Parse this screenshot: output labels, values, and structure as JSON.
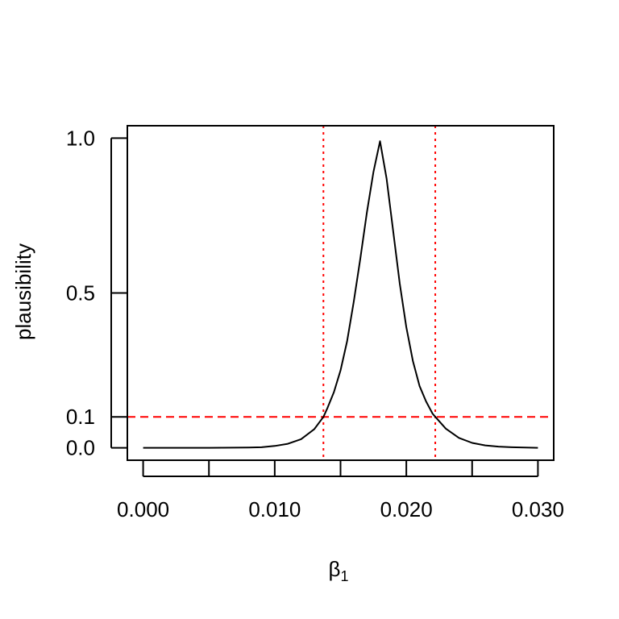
{
  "chart_data": {
    "type": "line",
    "xlabel": "β",
    "xlabel_subscript": "1",
    "ylabel": "plausibility",
    "xlim": [
      -0.0012,
      0.0312
    ],
    "ylim": [
      -0.04,
      1.04
    ],
    "x_ticks": [
      0.0,
      0.005,
      0.01,
      0.015,
      0.02,
      0.025,
      0.03
    ],
    "x_tick_labels": [
      {
        "value": 0.0,
        "label": "0.000"
      },
      {
        "value": 0.01,
        "label": "0.010"
      },
      {
        "value": 0.02,
        "label": "0.020"
      },
      {
        "value": 0.03,
        "label": "0.030"
      }
    ],
    "y_ticks": [
      {
        "value": 0.0,
        "label": "0.0"
      },
      {
        "value": 0.1,
        "label": "0.1"
      },
      {
        "value": 0.5,
        "label": "0.5"
      },
      {
        "value": 1.0,
        "label": "1.0"
      }
    ],
    "series": [
      {
        "color": "#000000",
        "style": "solid",
        "x": [
          0.0,
          0.005,
          0.008,
          0.009,
          0.01,
          0.011,
          0.012,
          0.013,
          0.0137,
          0.014,
          0.0145,
          0.015,
          0.0155,
          0.016,
          0.0165,
          0.017,
          0.0175,
          0.018,
          0.0185,
          0.019,
          0.0195,
          0.02,
          0.0205,
          0.021,
          0.0215,
          0.022,
          0.0222,
          0.023,
          0.024,
          0.025,
          0.026,
          0.027,
          0.028,
          0.03
        ],
        "y": [
          0.0,
          0.0,
          0.001,
          0.002,
          0.006,
          0.013,
          0.028,
          0.06,
          0.1,
          0.128,
          0.18,
          0.25,
          0.345,
          0.47,
          0.61,
          0.76,
          0.89,
          0.99,
          0.87,
          0.7,
          0.53,
          0.39,
          0.28,
          0.2,
          0.15,
          0.11,
          0.1,
          0.062,
          0.032,
          0.016,
          0.008,
          0.004,
          0.002,
          0.0
        ]
      }
    ],
    "reference_lines": [
      {
        "orientation": "horizontal",
        "value": 0.1,
        "color": "#ff0000",
        "style": "dashed"
      },
      {
        "orientation": "vertical",
        "value": 0.0137,
        "color": "#ff0000",
        "style": "dotted"
      },
      {
        "orientation": "vertical",
        "value": 0.0222,
        "color": "#ff0000",
        "style": "dotted"
      }
    ],
    "grid": false,
    "legend": "none"
  }
}
